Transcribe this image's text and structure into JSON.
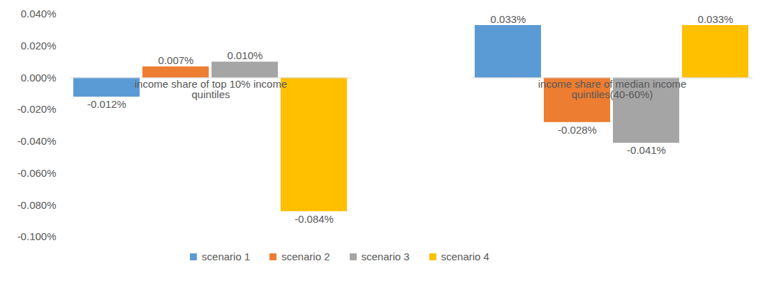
{
  "chart_data": {
    "type": "bar",
    "categories": [
      "income share of top 10% income quintiles",
      "income share of median income quintiles(40-60%)"
    ],
    "series": [
      {
        "name": "scenario 1",
        "color": "#5b9bd5",
        "values": [
          -0.012,
          0.033
        ],
        "value_labels": [
          "-0.012%",
          "0.033%"
        ]
      },
      {
        "name": "scenario 2",
        "color": "#ed7d31",
        "values": [
          0.007,
          -0.028
        ],
        "value_labels": [
          "0.007%",
          "-0.028%"
        ]
      },
      {
        "name": "scenario 3",
        "color": "#a5a5a5",
        "values": [
          0.01,
          -0.041
        ],
        "value_labels": [
          "0.010%",
          "-0.041%"
        ]
      },
      {
        "name": "scenario 4",
        "color": "#ffc000",
        "values": [
          -0.084,
          0.033
        ],
        "value_labels": [
          "-0.084%",
          "0.033%"
        ]
      }
    ],
    "ylim": [
      -0.1,
      0.04
    ],
    "yticks": [
      {
        "value": -0.1,
        "label": "-0.100%"
      },
      {
        "value": -0.08,
        "label": "-0.080%"
      },
      {
        "value": -0.06,
        "label": "-0.060%"
      },
      {
        "value": -0.04,
        "label": "-0.040%"
      },
      {
        "value": -0.02,
        "label": "-0.020%"
      },
      {
        "value": 0,
        "label": "0.000%"
      },
      {
        "value": 0.02,
        "label": "0.020%"
      },
      {
        "value": 0.04,
        "label": "0.040%"
      }
    ],
    "grid": false,
    "legend": "bottom",
    "data_labels": true
  }
}
